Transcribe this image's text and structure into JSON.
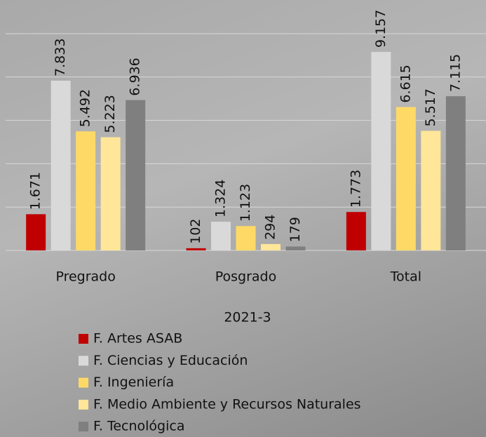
{
  "chart_data": {
    "type": "bar",
    "x_label": "2021-3",
    "categories": [
      "Pregrado",
      "Posgrado",
      "Total"
    ],
    "series": [
      {
        "name": "F. Artes ASAB",
        "color": "#c00000",
        "values": [
          1671,
          102,
          1773
        ],
        "value_labels": [
          "1.671",
          "102",
          "1.773"
        ]
      },
      {
        "name": "F. Ciencias y Educación",
        "color": "#d9d9d9",
        "values": [
          7833,
          1324,
          9157
        ],
        "value_labels": [
          "7.833",
          "1.324",
          "9.157"
        ]
      },
      {
        "name": "F. Ingeniería",
        "color": "#ffd966",
        "values": [
          5492,
          1123,
          6615
        ],
        "value_labels": [
          "5.492",
          "1.123",
          "6.615"
        ]
      },
      {
        "name": "F. Medio Ambiente y Recursos Naturales",
        "color": "#ffe699",
        "values": [
          5223,
          294,
          5517
        ],
        "value_labels": [
          "5.223",
          "294",
          "5.517"
        ]
      },
      {
        "name": "F. Tecnológica",
        "color": "#7f7f7f",
        "values": [
          6936,
          179,
          7115
        ],
        "value_labels": [
          "6.936",
          "179",
          "7.115"
        ]
      }
    ],
    "ylim": [
      0,
      10000
    ],
    "yticks": [
      0,
      2000,
      4000,
      6000,
      8000,
      10000
    ],
    "grid": true,
    "legend": "bottom"
  }
}
